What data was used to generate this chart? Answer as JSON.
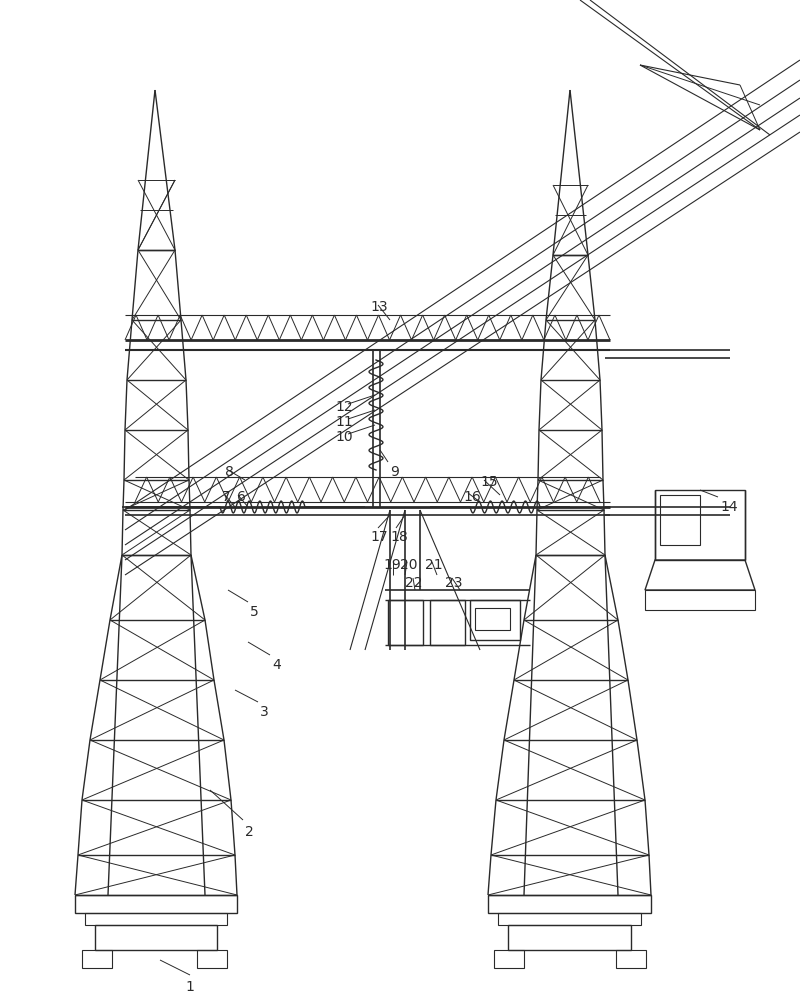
{
  "bg_color": "#ffffff",
  "line_color": "#2a2a2a",
  "lw": 1.0,
  "figsize": [
    8.0,
    10.0
  ],
  "dpi": 100
}
